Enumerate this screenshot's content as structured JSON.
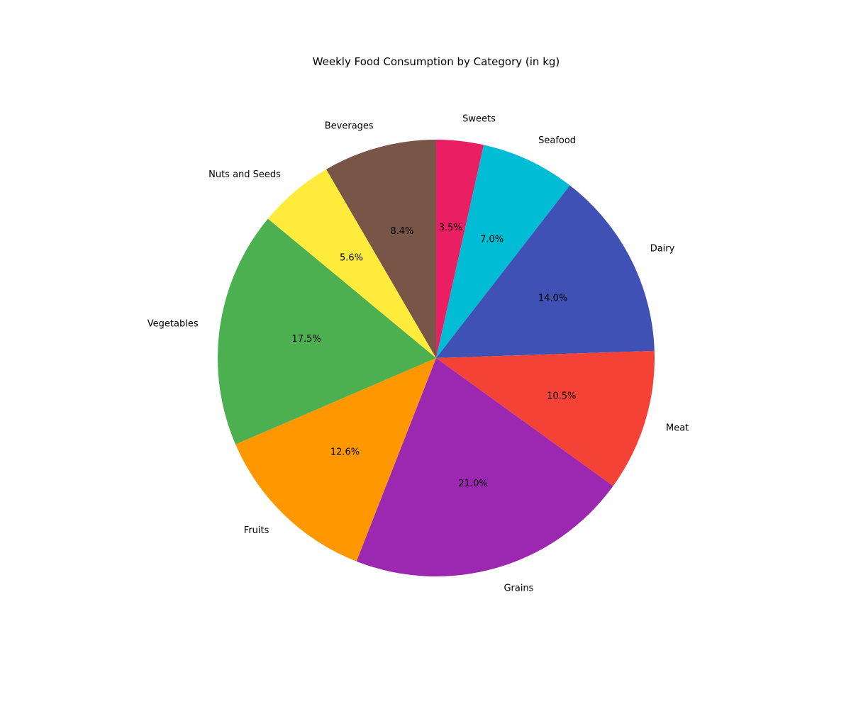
{
  "chart_data": {
    "type": "pie",
    "title": "Weekly Food Consumption by Category (in kg)",
    "start_angle_deg": 90,
    "direction": "clockwise",
    "slices": [
      {
        "label": "Sweets",
        "value": 3.5,
        "pct_label": "3.5%",
        "color": "#E91E63"
      },
      {
        "label": "Seafood",
        "value": 7.0,
        "pct_label": "7.0%",
        "color": "#00BCD4"
      },
      {
        "label": "Dairy",
        "value": 14.0,
        "pct_label": "14.0%",
        "color": "#3F51B5"
      },
      {
        "label": "Meat",
        "value": 10.5,
        "pct_label": "10.5%",
        "color": "#F44336"
      },
      {
        "label": "Grains",
        "value": 21.0,
        "pct_label": "21.0%",
        "color": "#9C27B0"
      },
      {
        "label": "Fruits",
        "value": 12.6,
        "pct_label": "12.6%",
        "color": "#FF9800"
      },
      {
        "label": "Vegetables",
        "value": 17.5,
        "pct_label": "17.5%",
        "color": "#4CAF50"
      },
      {
        "label": "Nuts and Seeds",
        "value": 5.6,
        "pct_label": "5.6%",
        "color": "#FFEB3B"
      },
      {
        "label": "Beverages",
        "value": 8.4,
        "pct_label": "8.4%",
        "color": "#795548"
      }
    ]
  }
}
